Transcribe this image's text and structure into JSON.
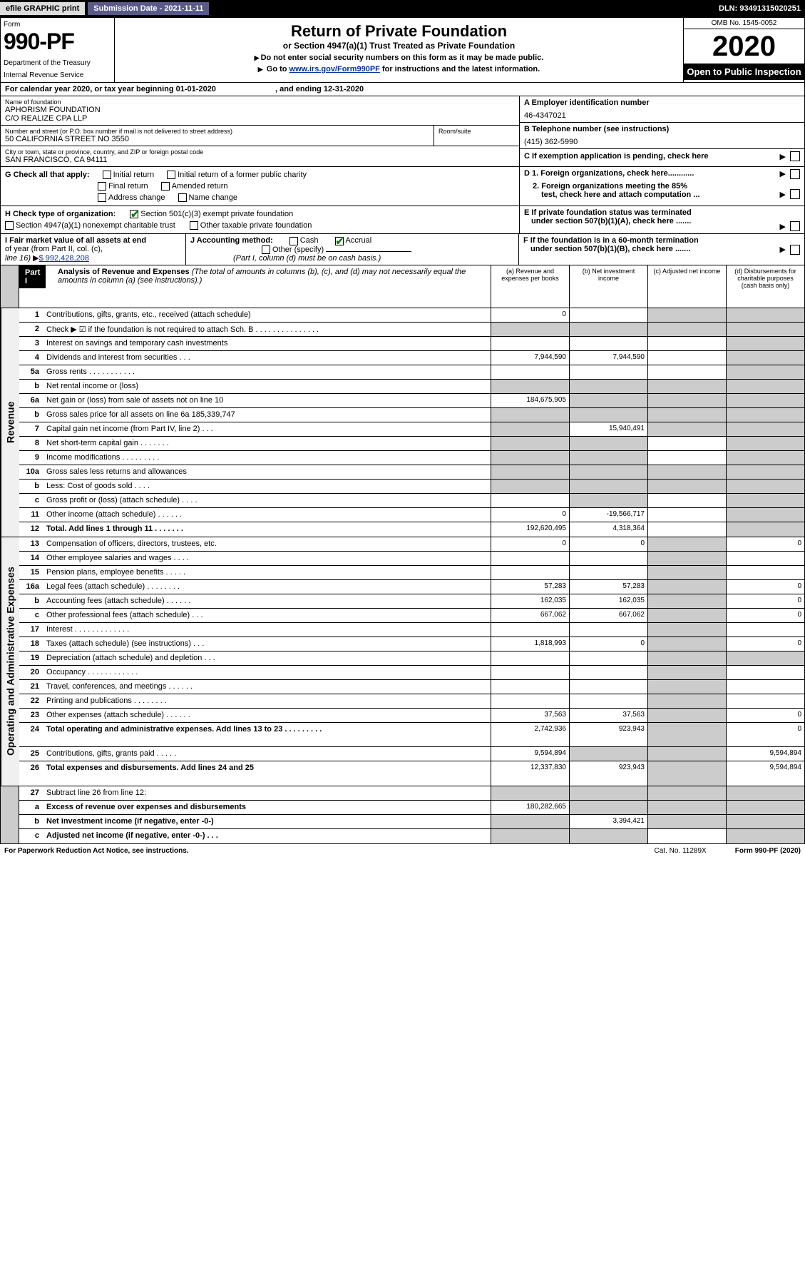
{
  "topbar": {
    "efile": "efile GRAPHIC print",
    "subdate": "Submission Date - 2021-11-11",
    "dln": "DLN: 93491315020251"
  },
  "header": {
    "form_word": "Form",
    "form_no": "990-PF",
    "dept": "Department of the Treasury",
    "irs": "Internal Revenue Service",
    "title": "Return of Private Foundation",
    "subtitle": "or Section 4947(a)(1) Trust Treated as Private Foundation",
    "note1": "Do not enter social security numbers on this form as it may be made public.",
    "note2_pre": "Go to ",
    "note2_link": "www.irs.gov/Form990PF",
    "note2_post": " for instructions and the latest information.",
    "omb": "OMB No. 1545-0052",
    "year": "2020",
    "open": "Open to Public Inspection"
  },
  "cal": {
    "prefix": "For calendar year 2020, or tax year beginning ",
    "begin": "01-01-2020",
    "mid": " , and ending ",
    "end": "12-31-2020"
  },
  "entity": {
    "name_label": "Name of foundation",
    "name1": "APHORISM FOUNDATION",
    "name2": "C/O REALIZE CPA LLP",
    "addr_label": "Number and street (or P.O. box number if mail is not delivered to street address)",
    "addr": "50 CALIFORNIA STREET NO 3550",
    "room_label": "Room/suite",
    "city_label": "City or town, state or province, country, and ZIP or foreign postal code",
    "city": "SAN FRANCISCO, CA  94111",
    "a_label": "A Employer identification number",
    "ein": "46-4347021",
    "b_label": "B Telephone number (see instructions)",
    "phone": "(415) 362-5990",
    "c_label": "C If exemption application is pending, check here"
  },
  "g": {
    "label": "G Check all that apply:",
    "initial": "Initial return",
    "initial_former": "Initial return of a former public charity",
    "final": "Final return",
    "amended": "Amended return",
    "addr_change": "Address change",
    "name_change": "Name change"
  },
  "d": {
    "d1": "D 1. Foreign organizations, check here............",
    "d2a": "2. Foreign organizations meeting the 85%",
    "d2b": "test, check here and attach computation ..."
  },
  "h": {
    "label": "H Check type of organization:",
    "opt1": "Section 501(c)(3) exempt private foundation",
    "opt2": "Section 4947(a)(1) nonexempt charitable trust",
    "opt3": "Other taxable private foundation"
  },
  "e": {
    "e1": "E If private foundation status was terminated",
    "e2": "under section 507(b)(1)(A), check here ......."
  },
  "i": {
    "label1": "I Fair market value of all assets at end",
    "label2": "of year (from Part II, col. (c),",
    "label3": "line 16)",
    "val": "$  992,428,208"
  },
  "j": {
    "label": "J Accounting method:",
    "cash": "Cash",
    "accrual": "Accrual",
    "other": "Other (specify)",
    "note": "(Part I, column (d) must be on cash basis.)"
  },
  "f": {
    "f1": "F If the foundation is in a 60-month termination",
    "f2": "under section 507(b)(1)(B), check here ......."
  },
  "part1": {
    "hdr": "Part I",
    "title": "Analysis of Revenue and Expenses",
    "title_note": " (The total of amounts in columns (b), (c), and (d) may not necessarily equal the amounts in column (a) (see instructions).)",
    "col_a": "(a)   Revenue and expenses per books",
    "col_b": "(b)   Net investment income",
    "col_c": "(c)   Adjusted net income",
    "col_d": "(d)   Disbursements for charitable purposes (cash basis only)"
  },
  "side_rev": "Revenue",
  "side_exp": "Operating and Administrative Expenses",
  "lines": [
    {
      "n": "1",
      "d": "Contributions, gifts, grants, etc., received (attach schedule)",
      "a": "0",
      "b": "",
      "c": "sh",
      "dd": "sh"
    },
    {
      "n": "2",
      "d": "Check ▶ ☑ if the foundation is not required to attach Sch. B     .   .   .   .   .   .   .   .   .   .   .   .   .   .   .",
      "a": "sh",
      "b": "sh",
      "c": "sh",
      "dd": "sh",
      "nodata": true
    },
    {
      "n": "3",
      "d": "Interest on savings and temporary cash investments",
      "a": "",
      "b": "",
      "c": "",
      "dd": "sh"
    },
    {
      "n": "4",
      "d": "Dividends and interest from securities     .   .   .",
      "a": "7,944,590",
      "b": "7,944,590",
      "c": "",
      "dd": "sh"
    },
    {
      "n": "5a",
      "d": "Gross rents     .   .   .   .   .   .   .   .   .   .   .",
      "a": "",
      "b": "",
      "c": "",
      "dd": "sh"
    },
    {
      "n": "b",
      "d": "Net rental income or (loss)  ",
      "a": "sh",
      "b": "sh",
      "c": "sh",
      "dd": "sh",
      "boxed": true
    },
    {
      "n": "6a",
      "d": "Net gain or (loss) from sale of assets not on line 10",
      "a": "184,675,905",
      "b": "sh",
      "c": "sh",
      "dd": "sh"
    },
    {
      "n": "b",
      "d": "Gross sales price for all assets on line 6a          185,339,747",
      "a": "sh",
      "b": "sh",
      "c": "sh",
      "dd": "sh",
      "under": true
    },
    {
      "n": "7",
      "d": "Capital gain net income (from Part IV, line 2)    .   .   .",
      "a": "sh",
      "b": "15,940,491",
      "c": "sh",
      "dd": "sh"
    },
    {
      "n": "8",
      "d": "Net short-term capital gain   .   .   .   .   .   .   .",
      "a": "sh",
      "b": "sh",
      "c": "",
      "dd": "sh"
    },
    {
      "n": "9",
      "d": "Income modifications  .   .   .   .   .   .   .   .   .",
      "a": "sh",
      "b": "sh",
      "c": "",
      "dd": "sh"
    },
    {
      "n": "10a",
      "d": "Gross sales less returns and allowances",
      "a": "sh",
      "b": "sh",
      "c": "sh",
      "dd": "sh",
      "boxed": true
    },
    {
      "n": "b",
      "d": "Less: Cost of goods sold     .   .   .   .",
      "a": "sh",
      "b": "sh",
      "c": "sh",
      "dd": "sh",
      "boxed": true
    },
    {
      "n": "c",
      "d": "Gross profit or (loss) (attach schedule)     .   .   .   .",
      "a": "",
      "b": "sh",
      "c": "",
      "dd": "sh"
    },
    {
      "n": "11",
      "d": "Other income (attach schedule)    .   .   .   .   .   .",
      "a": "0",
      "b": "-19,566,717",
      "c": "",
      "dd": "sh"
    },
    {
      "n": "12",
      "d": "Total. Add lines 1 through 11   .   .   .   .   .   .   .",
      "a": "192,620,495",
      "b": "4,318,364",
      "c": "",
      "dd": "sh",
      "bold": true
    }
  ],
  "exp_lines": [
    {
      "n": "13",
      "d": "Compensation of officers, directors, trustees, etc.",
      "a": "0",
      "b": "0",
      "c": "sh",
      "dd": "0"
    },
    {
      "n": "14",
      "d": "Other employee salaries and wages    .   .   .   .",
      "a": "",
      "b": "",
      "c": "sh",
      "dd": ""
    },
    {
      "n": "15",
      "d": "Pension plans, employee benefits  .   .   .   .   .",
      "a": "",
      "b": "",
      "c": "sh",
      "dd": ""
    },
    {
      "n": "16a",
      "d": "Legal fees (attach schedule)  .   .   .   .   .   .   .   .",
      "a": "57,283",
      "b": "57,283",
      "c": "sh",
      "dd": "0"
    },
    {
      "n": "b",
      "d": "Accounting fees (attach schedule)  .   .   .   .   .   .",
      "a": "162,035",
      "b": "162,035",
      "c": "sh",
      "dd": "0"
    },
    {
      "n": "c",
      "d": "Other professional fees (attach schedule)     .   .   .",
      "a": "667,062",
      "b": "667,062",
      "c": "sh",
      "dd": "0"
    },
    {
      "n": "17",
      "d": "Interest  .   .   .   .   .   .   .   .   .   .   .   .   .",
      "a": "",
      "b": "",
      "c": "sh",
      "dd": ""
    },
    {
      "n": "18",
      "d": "Taxes (attach schedule) (see instructions)     .   .   .",
      "a": "1,818,993",
      "b": "0",
      "c": "sh",
      "dd": "0"
    },
    {
      "n": "19",
      "d": "Depreciation (attach schedule) and depletion    .   .   .",
      "a": "",
      "b": "",
      "c": "sh",
      "dd": "sh"
    },
    {
      "n": "20",
      "d": "Occupancy  .   .   .   .   .   .   .   .   .   .   .   .",
      "a": "",
      "b": "",
      "c": "sh",
      "dd": ""
    },
    {
      "n": "21",
      "d": "Travel, conferences, and meetings  .   .   .   .   .   .",
      "a": "",
      "b": "",
      "c": "sh",
      "dd": ""
    },
    {
      "n": "22",
      "d": "Printing and publications  .   .   .   .   .   .   .   .",
      "a": "",
      "b": "",
      "c": "sh",
      "dd": ""
    },
    {
      "n": "23",
      "d": "Other expenses (attach schedule)  .   .   .   .   .   .",
      "a": "37,563",
      "b": "37,563",
      "c": "sh",
      "dd": "0"
    },
    {
      "n": "24",
      "d": "Total operating and administrative expenses. Add lines 13 to 23   .   .   .   .   .   .   .   .   .",
      "a": "2,742,936",
      "b": "923,943",
      "c": "sh",
      "dd": "0",
      "bold": true,
      "tall": true
    },
    {
      "n": "25",
      "d": "Contributions, gifts, grants paid     .   .   .   .   .",
      "a": "9,594,894",
      "b": "sh",
      "c": "sh",
      "dd": "9,594,894"
    },
    {
      "n": "26",
      "d": "Total expenses and disbursements. Add lines 24 and 25",
      "a": "12,337,830",
      "b": "923,943",
      "c": "sh",
      "dd": "9,594,894",
      "bold": true,
      "tall": true
    }
  ],
  "net_lines": [
    {
      "n": "27",
      "d": "Subtract line 26 from line 12:",
      "a": "sh",
      "b": "sh",
      "c": "sh",
      "dd": "sh"
    },
    {
      "n": "a",
      "d": "Excess of revenue over expenses and disbursements",
      "a": "180,282,665",
      "b": "sh",
      "c": "sh",
      "dd": "sh",
      "bold": true
    },
    {
      "n": "b",
      "d": "Net investment income (if negative, enter -0-)",
      "a": "sh",
      "b": "3,394,421",
      "c": "sh",
      "dd": "sh",
      "bold": true
    },
    {
      "n": "c",
      "d": "Adjusted net income (if negative, enter -0-)    .   .   .",
      "a": "sh",
      "b": "sh",
      "c": "",
      "dd": "sh",
      "bold": true
    }
  ],
  "footer": {
    "left": "For Paperwork Reduction Act Notice, see instructions.",
    "mid": "Cat. No. 11289X",
    "right": "Form 990-PF (2020)"
  }
}
